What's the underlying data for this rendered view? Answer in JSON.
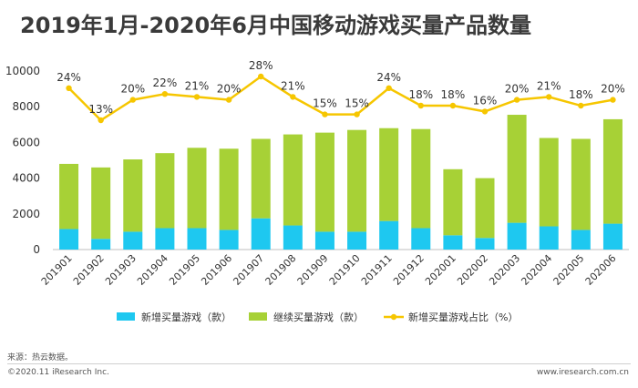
{
  "title": "2019年1月-2020年6月中国移动游戏买量产品数量",
  "source": "来源：热云数据。",
  "copyright": "©2020.11 iResearch Inc.",
  "website": "www.iresearch.com.cn",
  "colors": {
    "new": "#1ec8f0",
    "continued": "#a7d136",
    "line": "#f6c600",
    "axis_text": "#333333"
  },
  "chart_data": {
    "type": "bar",
    "stacked": true,
    "categories": [
      "201901",
      "201902",
      "201903",
      "201904",
      "201905",
      "201906",
      "201907",
      "201908",
      "201909",
      "201910",
      "201911",
      "201912",
      "202001",
      "202002",
      "202003",
      "202004",
      "202005",
      "202006"
    ],
    "ylim": [
      0,
      10000
    ],
    "yticks": [
      "0",
      "2000",
      "4000",
      "6000",
      "8000",
      "10000"
    ],
    "series": [
      {
        "name": "新增买量游戏（款）",
        "type": "bar",
        "values": [
          1150,
          600,
          1000,
          1200,
          1200,
          1100,
          1750,
          1350,
          1000,
          1000,
          1600,
          1200,
          800,
          650,
          1500,
          1300,
          1100,
          1450
        ]
      },
      {
        "name": "继续买量游戏（款）",
        "type": "bar",
        "values": [
          3650,
          4000,
          4050,
          4200,
          4500,
          4550,
          4450,
          5100,
          5550,
          5700,
          5200,
          5550,
          3700,
          3350,
          6050,
          4950,
          5100,
          5850
        ]
      },
      {
        "name": "新增买量游戏占比（%）",
        "type": "line",
        "values": [
          24,
          13,
          20,
          22,
          21,
          20,
          28,
          21,
          15,
          15,
          24,
          18,
          18,
          16,
          20,
          21,
          18,
          20
        ],
        "labels": [
          "24%",
          "13%",
          "20%",
          "22%",
          "21%",
          "20%",
          "28%",
          "21%",
          "15%",
          "15%",
          "24%",
          "18%",
          "18%",
          "16%",
          "20%",
          "21%",
          "18%",
          "20%"
        ]
      }
    ],
    "legend_position": "bottom"
  }
}
